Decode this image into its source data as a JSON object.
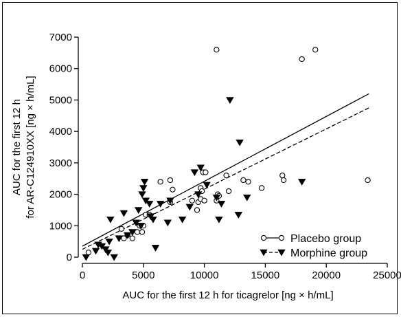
{
  "chart_data": {
    "type": "scatter",
    "xlabel": "AUC for the first 12 h for ticagrelor [ng × h/mL]",
    "ylabel_lines": [
      "AUC for the first 12 h",
      "for AR-C124910XX [ng × h/mL]"
    ],
    "xlim": [
      0,
      25000
    ],
    "ylim": [
      0,
      7000
    ],
    "xticks": [
      0,
      5000,
      10000,
      15000,
      20000,
      25000
    ],
    "yticks": [
      0,
      1000,
      2000,
      3000,
      4000,
      5000,
      6000,
      7000
    ],
    "legend_position": "bottom-right",
    "series": [
      {
        "name": "Placebo group",
        "marker": "circle-open",
        "line_style": "solid",
        "fit": [
          [
            0,
            350
          ],
          [
            23500,
            5200
          ]
        ],
        "points": [
          [
            500,
            150
          ],
          [
            3200,
            900
          ],
          [
            3400,
            600
          ],
          [
            3700,
            700
          ],
          [
            4100,
            600
          ],
          [
            4500,
            800
          ],
          [
            4700,
            1000
          ],
          [
            4900,
            800
          ],
          [
            5000,
            1000
          ],
          [
            5200,
            1350
          ],
          [
            5500,
            1350
          ],
          [
            6400,
            2400
          ],
          [
            7200,
            2450
          ],
          [
            7200,
            1750
          ],
          [
            7400,
            2150
          ],
          [
            9000,
            1800
          ],
          [
            9400,
            1500
          ],
          [
            9500,
            1750
          ],
          [
            9700,
            1850
          ],
          [
            9700,
            2200
          ],
          [
            9800,
            2100
          ],
          [
            9900,
            2700
          ],
          [
            10000,
            1800
          ],
          [
            10100,
            2700
          ],
          [
            11000,
            1800
          ],
          [
            11000,
            6600
          ],
          [
            11100,
            2000
          ],
          [
            11200,
            1950
          ],
          [
            11800,
            2600
          ],
          [
            12000,
            2100
          ],
          [
            13200,
            2450
          ],
          [
            13600,
            2400
          ],
          [
            14700,
            2200
          ],
          [
            16400,
            2600
          ],
          [
            16500,
            2450
          ],
          [
            18000,
            6300
          ],
          [
            19100,
            6600
          ],
          [
            23400,
            2450
          ]
        ]
      },
      {
        "name": "Morphine group",
        "marker": "triangle-down-filled",
        "line_style": "dashed",
        "fit": [
          [
            0,
            250
          ],
          [
            23500,
            4750
          ]
        ],
        "points": [
          [
            300,
            0
          ],
          [
            1100,
            200
          ],
          [
            1300,
            400
          ],
          [
            1600,
            350
          ],
          [
            1900,
            250
          ],
          [
            2100,
            150
          ],
          [
            2200,
            500
          ],
          [
            2300,
            1200
          ],
          [
            2600,
            0
          ],
          [
            3000,
            600
          ],
          [
            3400,
            1400
          ],
          [
            3700,
            700
          ],
          [
            4100,
            800
          ],
          [
            4400,
            1100
          ],
          [
            4600,
            1500
          ],
          [
            4800,
            1000
          ],
          [
            4900,
            2000
          ],
          [
            5000,
            2200
          ],
          [
            5100,
            2400
          ],
          [
            5200,
            1800
          ],
          [
            5500,
            1700
          ],
          [
            5600,
            1300
          ],
          [
            5800,
            1200
          ],
          [
            6000,
            300
          ],
          [
            6400,
            1700
          ],
          [
            7000,
            1100
          ],
          [
            7200,
            1800
          ],
          [
            8200,
            1200
          ],
          [
            8800,
            1600
          ],
          [
            9200,
            2700
          ],
          [
            9500,
            2000
          ],
          [
            9700,
            2850
          ],
          [
            10200,
            2300
          ],
          [
            11000,
            1900
          ],
          [
            11200,
            1200
          ],
          [
            11400,
            1700
          ],
          [
            12100,
            5000
          ],
          [
            12800,
            1350
          ],
          [
            12900,
            3650
          ],
          [
            13500,
            1900
          ],
          [
            18000,
            2400
          ]
        ]
      }
    ]
  }
}
